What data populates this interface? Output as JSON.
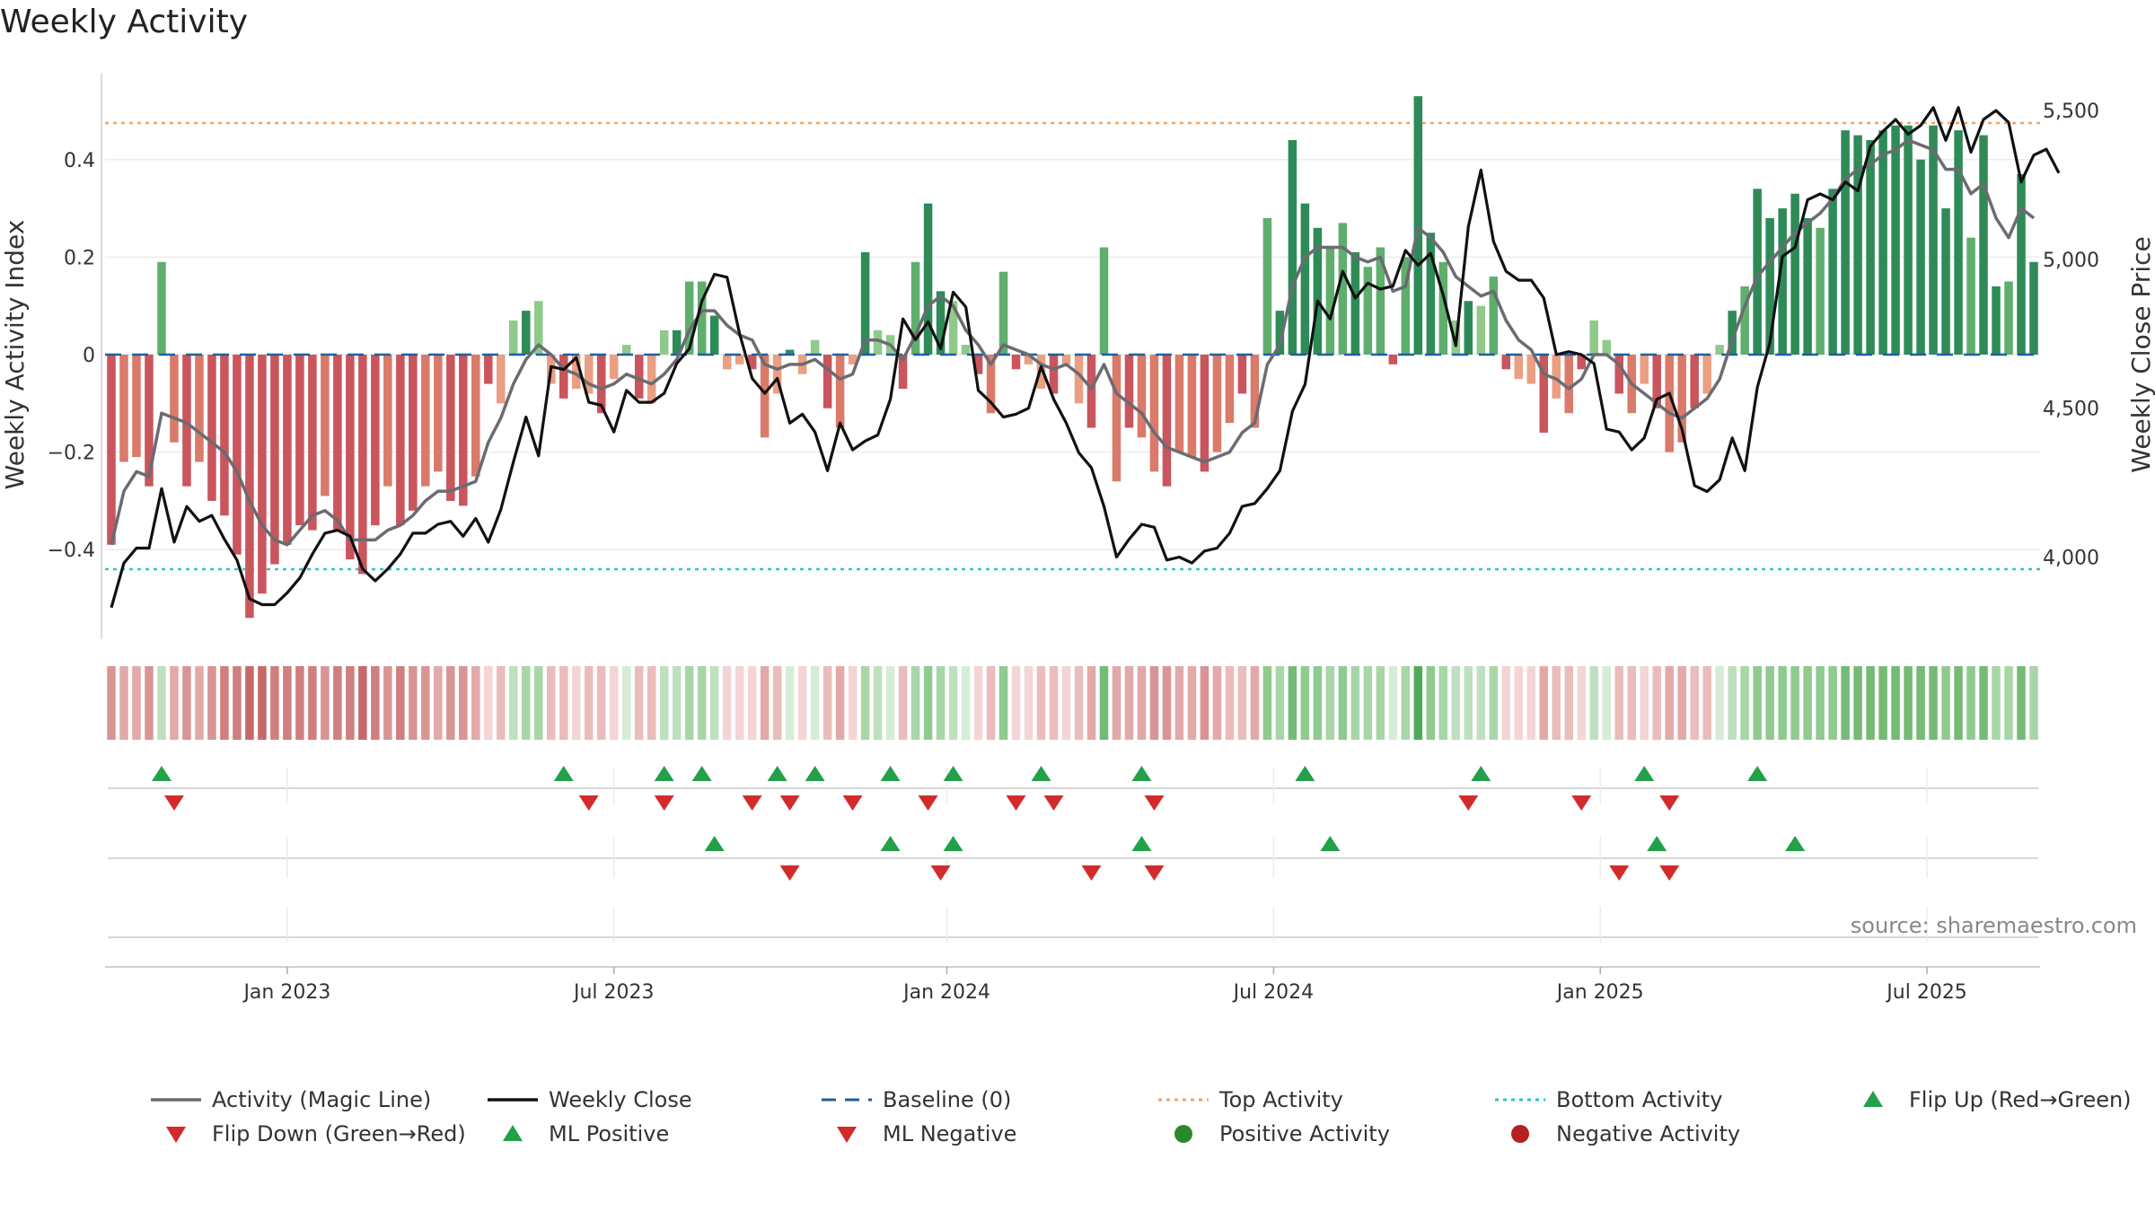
{
  "title": "Weekly Activity",
  "source": "source: sharemaestro.com",
  "colors": {
    "pos_dark": "#2e8b57",
    "pos_mid": "#5fae6e",
    "pos_light": "#8fca8a",
    "neg_dark": "#c9555d",
    "neg_mid": "#d97a6a",
    "neg_light": "#eb9f82",
    "magic_line": "#6b6b72",
    "close_line": "#111111",
    "top_line": "#f4a261",
    "bottom_line": "#2cc6c6",
    "baseline": "#1f5f9c",
    "marker_up": "#22a04a",
    "marker_down": "#d22b2b",
    "pos_dot": "#2a8a2a",
    "neg_dot": "#b52020"
  },
  "chart_data": {
    "type": "bar+line",
    "title": "Weekly Activity",
    "ylabel": "Weekly Activity Index",
    "y2label": "Weekly Close Price",
    "ylim": [
      -0.58,
      0.58
    ],
    "y_ticks": [
      0.4,
      0.2,
      0,
      -0.2,
      -0.4
    ],
    "y_tick_labels": [
      "0.4",
      "0.2",
      "0",
      "−0.2",
      "−0.4"
    ],
    "y2lim": [
      3730,
      5630
    ],
    "y2_ticks": [
      5500,
      5000,
      4500,
      4000
    ],
    "y2_tick_labels": [
      "5,500",
      "5,000",
      "4,500",
      "4,000"
    ],
    "x_tick_labels": [
      "Jan 2023",
      "Jul 2023",
      "Jan 2024",
      "Jul 2024",
      "Jan 2025",
      "Jul 2025"
    ],
    "x_tick_index": [
      14,
      40,
      66.5,
      92.5,
      118.5,
      144.5
    ],
    "top_activity": 0.475,
    "bottom_activity": -0.44,
    "baseline": 0,
    "activity": [
      -0.39,
      -0.22,
      -0.21,
      -0.27,
      0.19,
      -0.18,
      -0.27,
      -0.22,
      -0.3,
      -0.33,
      -0.41,
      -0.54,
      -0.49,
      -0.43,
      -0.39,
      -0.35,
      -0.36,
      -0.29,
      -0.36,
      -0.42,
      -0.45,
      -0.35,
      -0.27,
      -0.35,
      -0.32,
      -0.27,
      -0.24,
      -0.3,
      -0.31,
      -0.25,
      -0.06,
      -0.1,
      0.07,
      0.09,
      0.11,
      -0.06,
      -0.09,
      -0.07,
      -0.08,
      -0.12,
      -0.05,
      0.02,
      -0.09,
      -0.1,
      0.05,
      0.05,
      0.15,
      0.15,
      0.08,
      -0.03,
      -0.02,
      -0.03,
      -0.17,
      -0.08,
      0.01,
      -0.04,
      0.03,
      -0.11,
      -0.15,
      -0.02,
      0.21,
      0.05,
      0.04,
      -0.07,
      0.19,
      0.31,
      0.13,
      0.11,
      0.02,
      -0.04,
      -0.12,
      0.17,
      -0.03,
      -0.02,
      -0.07,
      -0.08,
      -0.02,
      -0.1,
      -0.15,
      0.22,
      -0.26,
      -0.15,
      -0.17,
      -0.24,
      -0.27,
      -0.2,
      -0.21,
      -0.24,
      -0.2,
      -0.14,
      -0.08,
      -0.15,
      0.28,
      0.09,
      0.44,
      0.31,
      0.26,
      0.22,
      0.27,
      0.21,
      0.18,
      0.22,
      -0.02,
      0.2,
      0.53,
      0.25,
      0.19,
      0.07,
      0.11,
      0.1,
      0.16,
      -0.03,
      -0.05,
      -0.06,
      -0.16,
      -0.09,
      -0.12,
      -0.03,
      0.07,
      0.03,
      -0.08,
      -0.12,
      -0.06,
      -0.11,
      -0.2,
      -0.18,
      -0.11,
      -0.08,
      0.02,
      0.09,
      0.14,
      0.34,
      0.28,
      0.3,
      0.33,
      0.28,
      0.26,
      0.34,
      0.46,
      0.45,
      0.44,
      0.46,
      0.47,
      0.47,
      0.4,
      0.47,
      0.3,
      0.46,
      0.24,
      0.45,
      0.14,
      0.15,
      0.37,
      0.19
    ],
    "magic_line": [
      -0.39,
      -0.28,
      -0.24,
      -0.25,
      -0.12,
      -0.13,
      -0.14,
      -0.16,
      -0.18,
      -0.2,
      -0.24,
      -0.3,
      -0.35,
      -0.38,
      -0.39,
      -0.36,
      -0.33,
      -0.32,
      -0.34,
      -0.38,
      -0.38,
      -0.38,
      -0.36,
      -0.35,
      -0.33,
      -0.3,
      -0.28,
      -0.28,
      -0.27,
      -0.26,
      -0.18,
      -0.13,
      -0.06,
      -0.01,
      0.02,
      0.0,
      -0.03,
      -0.04,
      -0.06,
      -0.07,
      -0.06,
      -0.04,
      -0.05,
      -0.06,
      -0.04,
      -0.01,
      0.05,
      0.09,
      0.09,
      0.06,
      0.04,
      0.03,
      -0.02,
      -0.03,
      -0.02,
      -0.02,
      -0.01,
      -0.03,
      -0.05,
      -0.04,
      0.03,
      0.03,
      0.02,
      -0.01,
      0.04,
      0.1,
      0.12,
      0.1,
      0.05,
      0.02,
      -0.02,
      0.02,
      0.01,
      0.0,
      -0.02,
      -0.03,
      -0.02,
      -0.04,
      -0.07,
      -0.02,
      -0.08,
      -0.1,
      -0.12,
      -0.16,
      -0.19,
      -0.2,
      -0.21,
      -0.22,
      -0.21,
      -0.2,
      -0.16,
      -0.14,
      -0.02,
      0.02,
      0.14,
      0.2,
      0.22,
      0.22,
      0.22,
      0.2,
      0.19,
      0.2,
      0.13,
      0.14,
      0.26,
      0.24,
      0.21,
      0.16,
      0.14,
      0.12,
      0.13,
      0.07,
      0.03,
      0.01,
      -0.04,
      -0.05,
      -0.07,
      -0.05,
      0.0,
      0.0,
      -0.02,
      -0.06,
      -0.08,
      -0.1,
      -0.12,
      -0.13,
      -0.11,
      -0.09,
      -0.05,
      0.03,
      0.1,
      0.16,
      0.19,
      0.22,
      0.25,
      0.27,
      0.29,
      0.32,
      0.36,
      0.38,
      0.39,
      0.41,
      0.42,
      0.44,
      0.43,
      0.42,
      0.38,
      0.38,
      0.33,
      0.35,
      0.28,
      0.24,
      0.3,
      0.28
    ],
    "weekly_close": [
      3830,
      3980,
      4030,
      4030,
      4230,
      4050,
      4170,
      4120,
      4140,
      4060,
      3990,
      3860,
      3840,
      3840,
      3880,
      3930,
      4010,
      4080,
      4090,
      4070,
      3960,
      3920,
      3960,
      4010,
      4080,
      4080,
      4110,
      4120,
      4070,
      4130,
      4050,
      4160,
      4320,
      4470,
      4340,
      4640,
      4630,
      4670,
      4520,
      4510,
      4420,
      4560,
      4520,
      4520,
      4550,
      4650,
      4700,
      4860,
      4950,
      4940,
      4750,
      4600,
      4550,
      4600,
      4450,
      4480,
      4420,
      4290,
      4450,
      4360,
      4390,
      4410,
      4530,
      4800,
      4730,
      4790,
      4700,
      4890,
      4840,
      4560,
      4520,
      4470,
      4480,
      4500,
      4640,
      4530,
      4450,
      4350,
      4300,
      4170,
      4000,
      4060,
      4110,
      4100,
      3990,
      4000,
      3980,
      4020,
      4030,
      4080,
      4170,
      4180,
      4230,
      4290,
      4490,
      4580,
      4860,
      4800,
      4960,
      4870,
      4920,
      4900,
      4910,
      5030,
      4980,
      5020,
      4880,
      4710,
      5110,
      5300,
      5060,
      4960,
      4930,
      4930,
      4870,
      4680,
      4690,
      4680,
      4650,
      4430,
      4420,
      4360,
      4400,
      4530,
      4550,
      4430,
      4240,
      4220,
      4260,
      4400,
      4290,
      4570,
      4720,
      5010,
      5040,
      5200,
      5220,
      5200,
      5260,
      5230,
      5380,
      5430,
      5470,
      5420,
      5450,
      5510,
      5400,
      5510,
      5360,
      5470,
      5500,
      5460,
      5260,
      5350,
      5370,
      5290
    ],
    "heat_shade": [
      4,
      3,
      3,
      4,
      -2,
      3,
      4,
      3,
      4,
      5,
      5,
      6,
      6,
      5,
      5,
      5,
      5,
      4,
      5,
      5,
      6,
      5,
      4,
      5,
      4,
      4,
      3,
      4,
      4,
      3,
      1,
      2,
      -2,
      -3,
      -3,
      2,
      2,
      1,
      2,
      2,
      1,
      -1,
      2,
      2,
      -2,
      -2,
      -3,
      -3,
      -2,
      1,
      1,
      1,
      3,
      2,
      -1,
      1,
      -1,
      2,
      3,
      1,
      -3,
      -2,
      -1,
      2,
      -3,
      -4,
      -3,
      -2,
      -1,
      1,
      2,
      -4,
      1,
      1,
      2,
      2,
      1,
      2,
      3,
      -5,
      3,
      3,
      3,
      4,
      4,
      3,
      3,
      4,
      3,
      2,
      2,
      3,
      -4,
      -3,
      -5,
      -4,
      -4,
      -3,
      -4,
      -3,
      -3,
      -3,
      -1,
      -3,
      -6,
      -4,
      -3,
      -2,
      -2,
      -2,
      -3,
      1,
      1,
      1,
      3,
      2,
      2,
      1,
      -2,
      -1,
      2,
      2,
      1,
      2,
      3,
      3,
      2,
      2,
      -1,
      -2,
      -3,
      -4,
      -4,
      -4,
      -4,
      -4,
      -4,
      -4,
      -5,
      -5,
      -5,
      -5,
      -5,
      -5,
      -5,
      -5,
      -4,
      -5,
      -4,
      -5,
      -3,
      -3,
      -5,
      -3
    ],
    "flip_up": [
      4,
      36,
      44,
      47,
      53,
      56,
      62,
      67,
      74,
      82,
      95,
      109,
      122,
      131
    ],
    "flip_down": [
      5,
      38,
      44,
      51,
      54,
      59,
      65,
      72,
      75,
      83,
      108,
      117,
      124
    ],
    "ml_positive": [
      48,
      62,
      67,
      82,
      97,
      123,
      134
    ],
    "ml_negative": [
      54,
      66,
      78,
      83,
      120,
      124
    ]
  },
  "legend": [
    {
      "label": "Activity (Magic Line)",
      "symbol": "line-gray"
    },
    {
      "label": "Weekly Close",
      "symbol": "line-black"
    },
    {
      "label": "Baseline (0)",
      "symbol": "dash-blue"
    },
    {
      "label": "Top Activity",
      "symbol": "dot-orange"
    },
    {
      "label": "Bottom Activity",
      "symbol": "dot-cyan"
    },
    {
      "label": "Flip Up (Red→Green)",
      "symbol": "tri-up"
    },
    {
      "label": "Flip Down (Green→Red)",
      "symbol": "tri-down"
    },
    {
      "label": "ML Positive",
      "symbol": "tri-up"
    },
    {
      "label": "ML Negative",
      "symbol": "tri-down"
    },
    {
      "label": "Positive Activity",
      "symbol": "circle-green"
    },
    {
      "label": "Negative Activity",
      "symbol": "circle-red"
    }
  ]
}
